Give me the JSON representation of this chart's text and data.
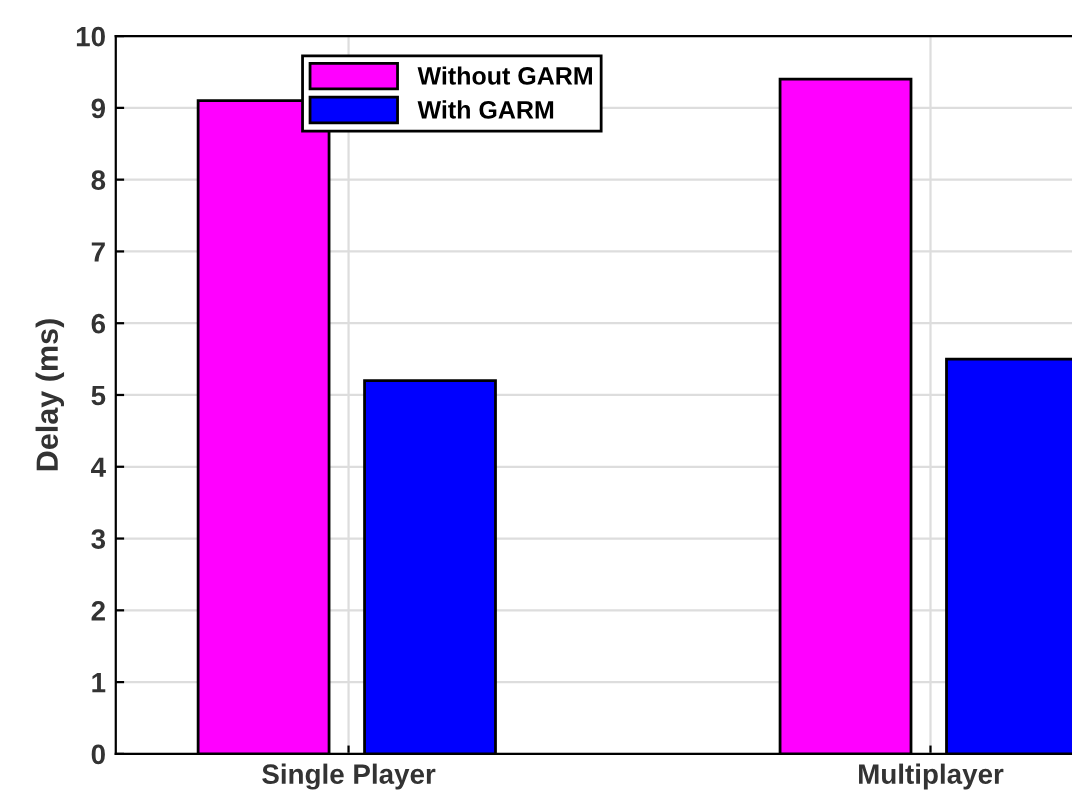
{
  "chart_data": {
    "type": "bar",
    "ylabel": "Delay (ms)",
    "categories": [
      "Single Player",
      "Multiplayer"
    ],
    "series": [
      {
        "name": "Without GARM",
        "color": "#ff00ff",
        "values": [
          9.1,
          9.4
        ]
      },
      {
        "name": "With GARM",
        "color": "#0000ff",
        "values": [
          5.2,
          5.5
        ]
      }
    ],
    "ylim": [
      0,
      10
    ],
    "yticks": [
      0,
      1,
      2,
      3,
      4,
      5,
      6,
      7,
      8,
      9,
      10
    ],
    "grid": true,
    "legend": "top"
  }
}
